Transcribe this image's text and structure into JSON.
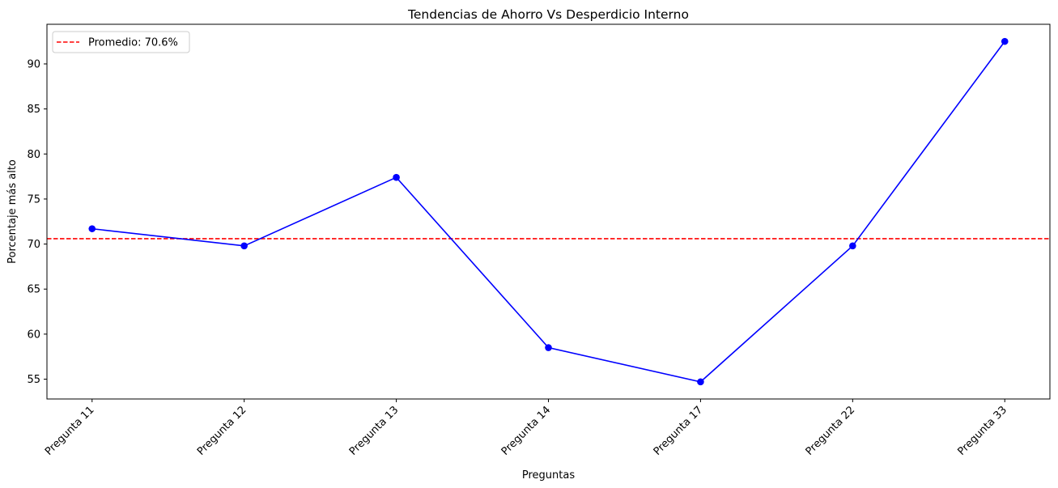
{
  "chart_data": {
    "type": "line",
    "title": "Tendencias de Ahorro Vs Desperdicio Interno",
    "xlabel": "Preguntas",
    "ylabel": "Porcentaje más alto",
    "categories": [
      "Pregunta 11",
      "Pregunta 12",
      "Pregunta 13",
      "Pregunta 14",
      "Pregunta 17",
      "Pregunta 22",
      "Pregunta 33"
    ],
    "series": [
      {
        "values": [
          71.7,
          69.8,
          77.4,
          58.5,
          54.7,
          69.8,
          92.5
        ],
        "color": "#0000ff",
        "marker": "circle"
      }
    ],
    "reference_line": {
      "label": "Promedio: 70.6%",
      "value": 70.6,
      "color": "#ff0000",
      "style": "dashed"
    },
    "ylim": [
      52.8,
      94.4
    ],
    "yticks": [
      55,
      60,
      65,
      70,
      75,
      80,
      85,
      90
    ],
    "grid": false,
    "legend_position": "top-left"
  }
}
